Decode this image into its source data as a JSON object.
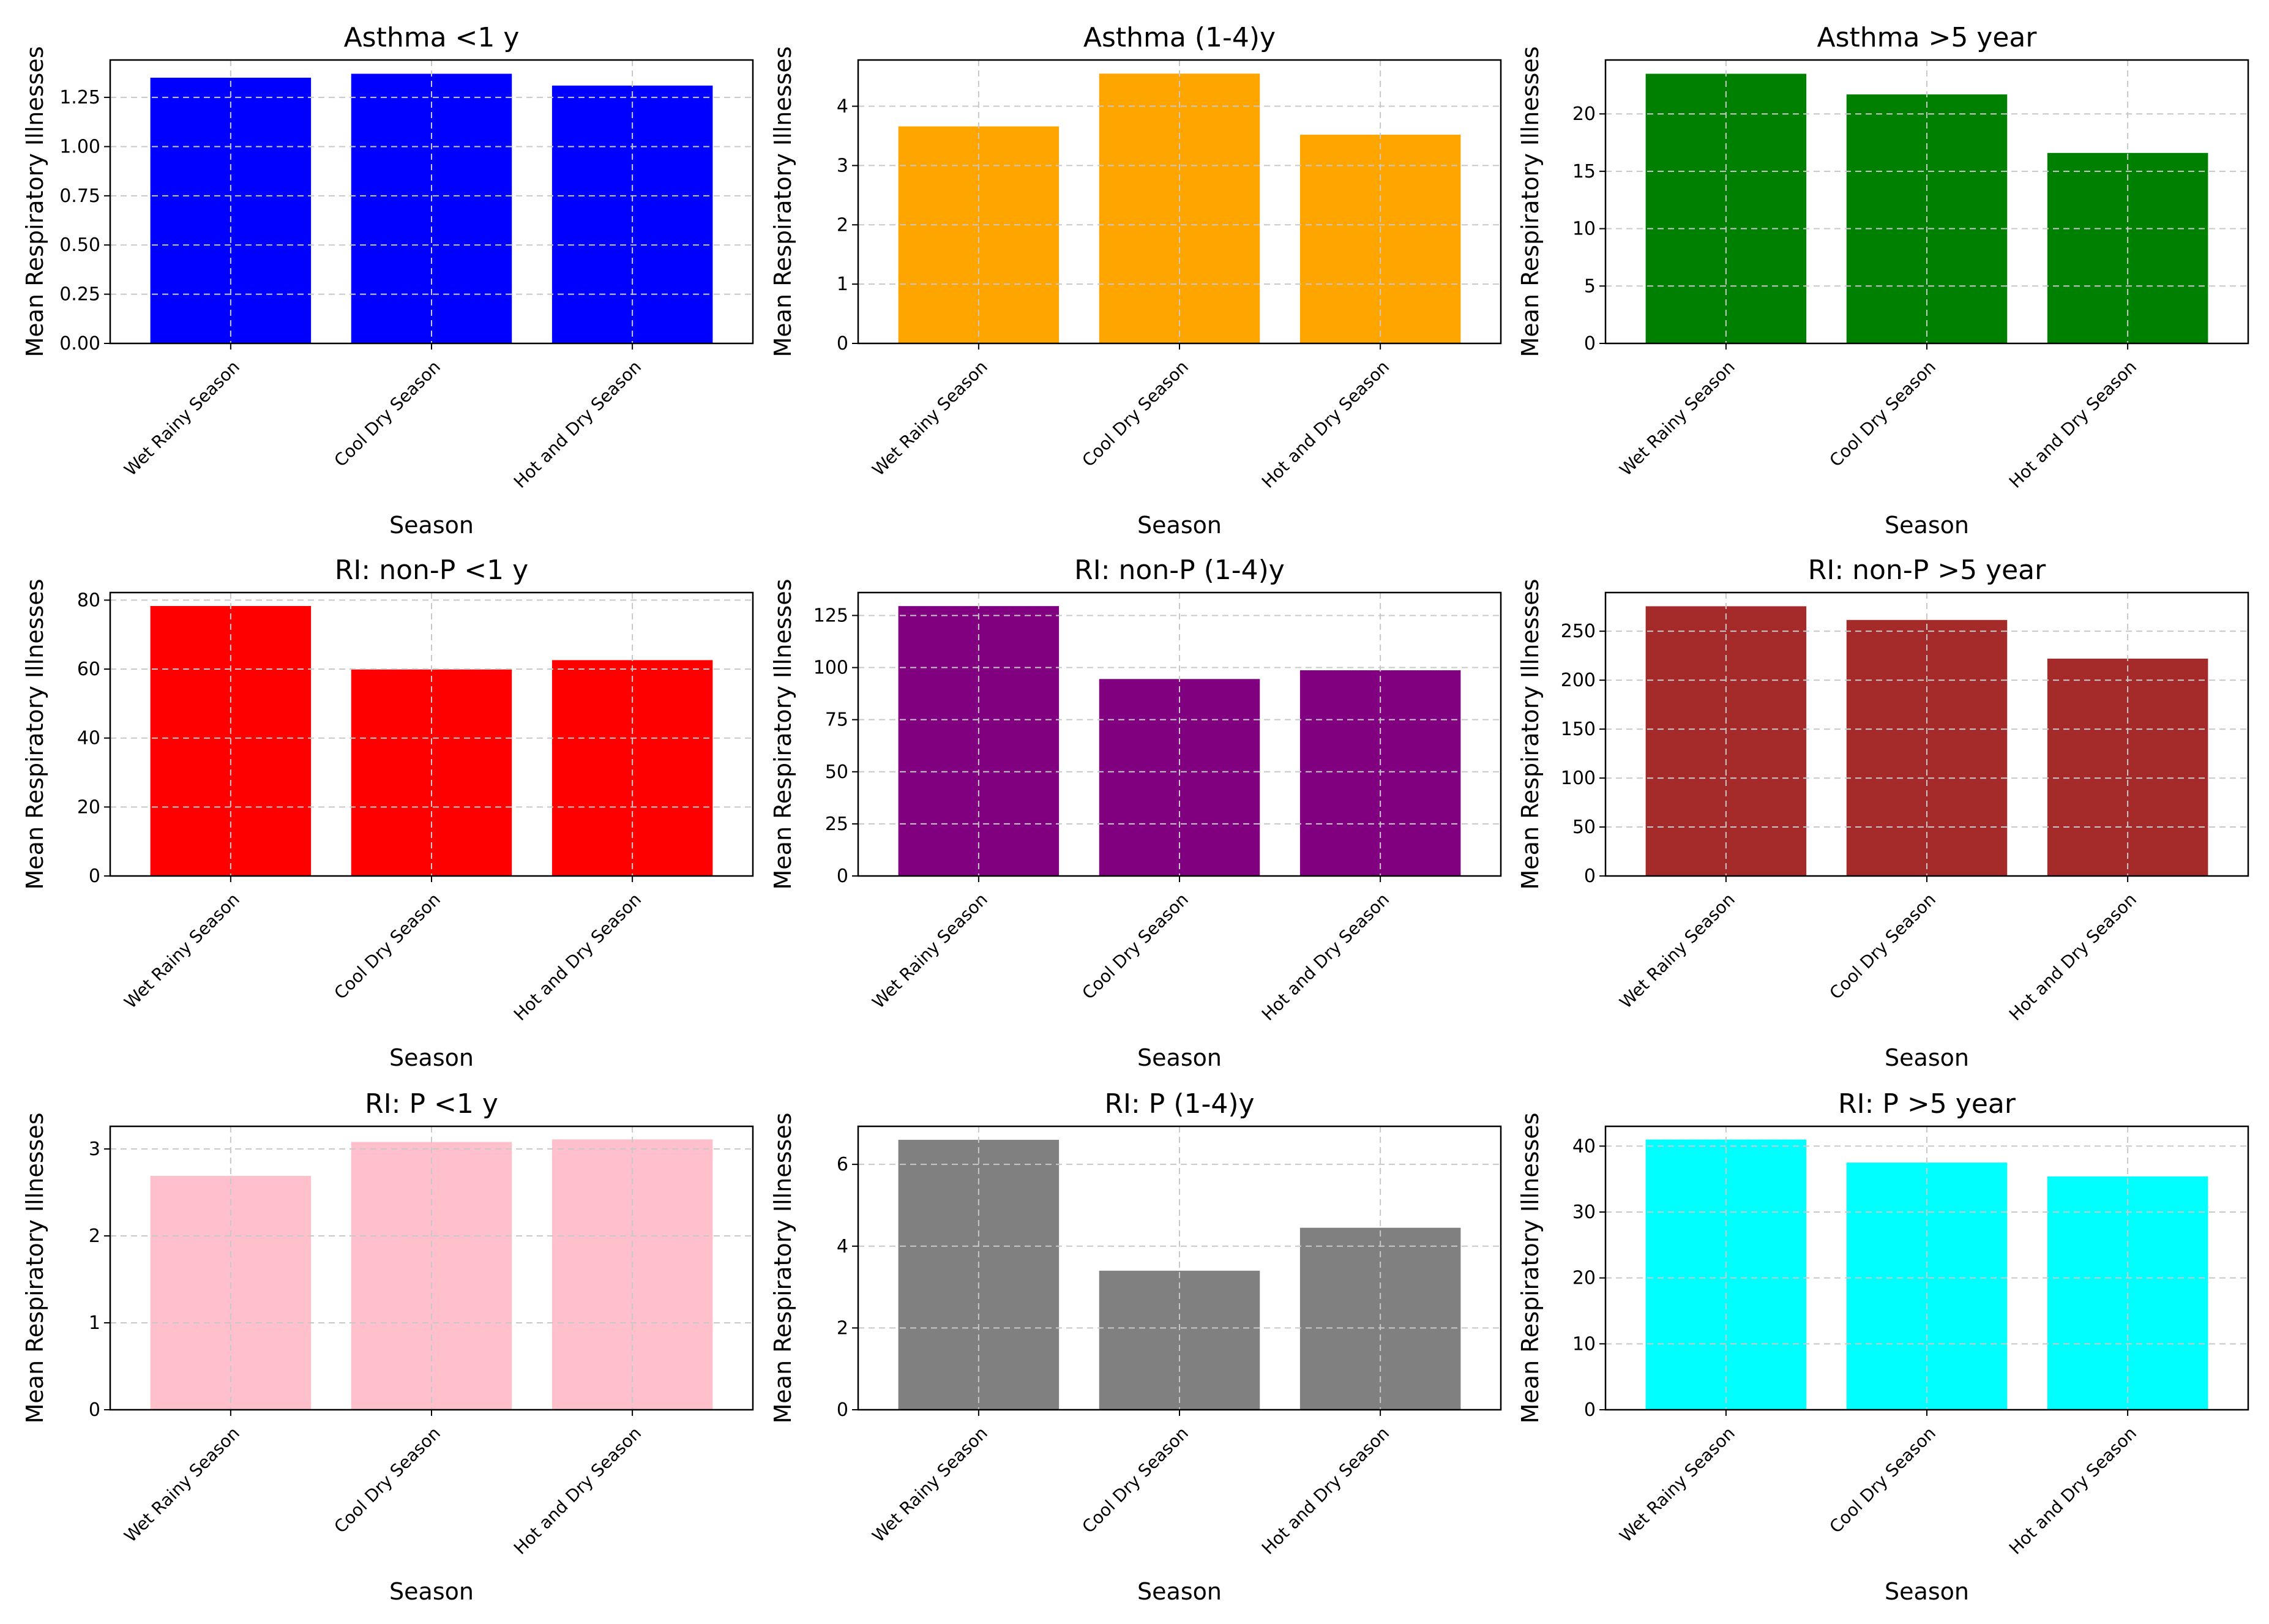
{
  "figure": {
    "background": "#ffffff",
    "grid_color": "#c8c8c8",
    "axis_color": "#000000"
  },
  "chart_data": [
    {
      "type": "bar",
      "title": "Asthma <1 y",
      "xlabel": "Season",
      "ylabel": "Mean Respiratory Illnesses",
      "categories": [
        "Wet Rainy Season",
        "Cool Dry Season",
        "Hot and Dry Season"
      ],
      "values": [
        1.35,
        1.37,
        1.31
      ],
      "ylim": [
        0,
        1.44
      ],
      "yticks": [
        0.0,
        0.25,
        0.5,
        0.75,
        1.0,
        1.25
      ],
      "ytick_labels": [
        "0.00",
        "0.25",
        "0.50",
        "0.75",
        "1.00",
        "1.25"
      ],
      "color": "#0000ff",
      "grid": true
    },
    {
      "type": "bar",
      "title": "Asthma (1-4)y",
      "xlabel": "Season",
      "ylabel": "Mean Respiratory Illnesses",
      "categories": [
        "Wet Rainy Season",
        "Cool Dry Season",
        "Hot and Dry Season"
      ],
      "values": [
        3.66,
        4.55,
        3.52
      ],
      "ylim": [
        0,
        4.78
      ],
      "yticks": [
        0,
        1,
        2,
        3,
        4
      ],
      "ytick_labels": [
        "0",
        "1",
        "2",
        "3",
        "4"
      ],
      "color": "#ffa500",
      "grid": true
    },
    {
      "type": "bar",
      "title": "Asthma >5 year",
      "xlabel": "Season",
      "ylabel": "Mean Respiratory Illnesses",
      "categories": [
        "Wet Rainy Season",
        "Cool Dry Season",
        "Hot and Dry Season"
      ],
      "values": [
        23.5,
        21.7,
        16.6
      ],
      "ylim": [
        0,
        24.7
      ],
      "yticks": [
        0,
        5,
        10,
        15,
        20
      ],
      "ytick_labels": [
        "0",
        "5",
        "10",
        "15",
        "20"
      ],
      "color": "#008000",
      "grid": true
    },
    {
      "type": "bar",
      "title": "RI: non-P  <1 y",
      "xlabel": "Season",
      "ylabel": "Mean Respiratory Illnesses",
      "categories": [
        "Wet Rainy Season",
        "Cool Dry Season",
        "Hot and Dry Season"
      ],
      "values": [
        78.3,
        59.9,
        62.6
      ],
      "ylim": [
        0,
        82.2
      ],
      "yticks": [
        0,
        20,
        40,
        60,
        80
      ],
      "ytick_labels": [
        "0",
        "20",
        "40",
        "60",
        "80"
      ],
      "color": "#ff0000",
      "grid": true
    },
    {
      "type": "bar",
      "title": "RI: non-P (1-4)y",
      "xlabel": "Season",
      "ylabel": "Mean Respiratory Illnesses",
      "categories": [
        "Wet Rainy Season",
        "Cool Dry Season",
        "Hot and Dry Season"
      ],
      "values": [
        129.5,
        94.5,
        98.7
      ],
      "ylim": [
        0,
        136
      ],
      "yticks": [
        0,
        25,
        50,
        75,
        100,
        125
      ],
      "ytick_labels": [
        "0",
        "25",
        "50",
        "75",
        "100",
        "125"
      ],
      "color": "#800080",
      "grid": true
    },
    {
      "type": "bar",
      "title": "RI: non-P  >5 year",
      "xlabel": "Season",
      "ylabel": "Mean Respiratory Illnesses",
      "categories": [
        "Wet Rainy Season",
        "Cool Dry Season",
        "Hot and Dry Season"
      ],
      "values": [
        275.5,
        261.5,
        222.0
      ],
      "ylim": [
        0,
        289.5
      ],
      "yticks": [
        0,
        50,
        100,
        150,
        200,
        250
      ],
      "ytick_labels": [
        "0",
        "50",
        "100",
        "150",
        "200",
        "250"
      ],
      "color": "#a52a2a",
      "grid": true
    },
    {
      "type": "bar",
      "title": "RI: P <1 y",
      "xlabel": "Season",
      "ylabel": "Mean Respiratory Illnesses",
      "categories": [
        "Wet Rainy Season",
        "Cool Dry Season",
        "Hot and Dry Season"
      ],
      "values": [
        2.69,
        3.08,
        3.11
      ],
      "ylim": [
        0,
        3.26
      ],
      "yticks": [
        0,
        1,
        2,
        3
      ],
      "ytick_labels": [
        "0",
        "1",
        "2",
        "3"
      ],
      "color": "#ffc0cb",
      "grid": true
    },
    {
      "type": "bar",
      "title": "RI: P (1-4)y",
      "xlabel": "Season",
      "ylabel": "Mean Respiratory Illnesses",
      "categories": [
        "Wet Rainy Season",
        "Cool Dry Season",
        "Hot and Dry Season"
      ],
      "values": [
        6.6,
        3.4,
        4.45
      ],
      "ylim": [
        0,
        6.93
      ],
      "yticks": [
        0,
        2,
        4,
        6
      ],
      "ytick_labels": [
        "0",
        "2",
        "4",
        "6"
      ],
      "color": "#808080",
      "grid": true
    },
    {
      "type": "bar",
      "title": "RI: P >5 year",
      "xlabel": "Season",
      "ylabel": "Mean Respiratory Illnesses",
      "categories": [
        "Wet Rainy Season",
        "Cool Dry Season",
        "Hot and Dry Season"
      ],
      "values": [
        41.0,
        37.5,
        35.4
      ],
      "ylim": [
        0,
        43.0
      ],
      "yticks": [
        0,
        10,
        20,
        30,
        40
      ],
      "ytick_labels": [
        "0",
        "10",
        "20",
        "30",
        "40"
      ],
      "color": "#00ffff",
      "grid": true
    }
  ]
}
